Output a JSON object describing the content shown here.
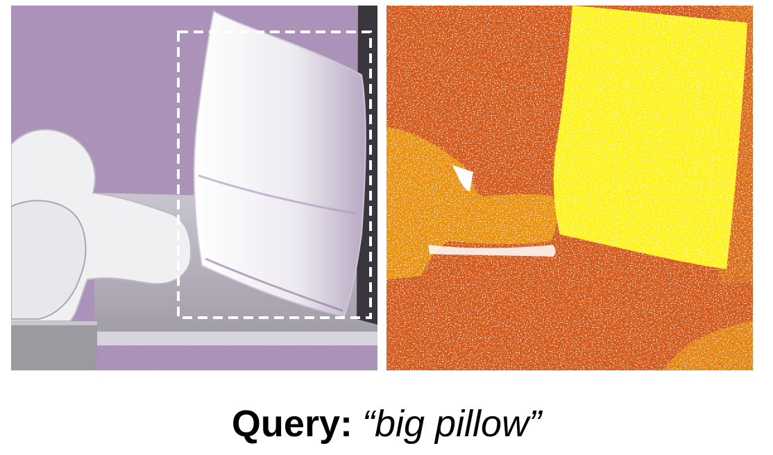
{
  "caption": {
    "label": "Query:",
    "query_text": "“big pillow”"
  },
  "panels": {
    "left": {
      "icon": "mesh-scene-render",
      "highlight": "dashed-bounding-box"
    },
    "right": {
      "icon": "point-cloud-heatmap"
    }
  },
  "colors": {
    "mesh_background": "#7a4a8c",
    "mesh_surface": "#f2f2f4",
    "bbox_stroke": "#ffffff",
    "heat_low": "#d2581a",
    "heat_mid": "#e8900c",
    "heat_high": "#fff21a"
  }
}
